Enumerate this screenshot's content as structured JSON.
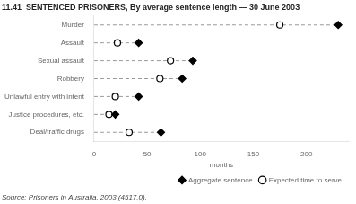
{
  "chart_data": {
    "type": "dot",
    "title": "11.41  SENTENCED PRISONERS, By average sentence length — 30 June 2003",
    "annotations": [
      "Source: Prisoners in Australia, 2003 (4517.0)."
    ],
    "orientation": "horizontal",
    "categories": [
      "Murder",
      "Assault",
      "Sexual assault",
      "Robbery",
      "Unlawful entry with intent",
      "Justice procedures, etc.",
      "Deal/traffic drugs"
    ],
    "series": [
      {
        "name": "Aggregate sentence",
        "color": "black",
        "marker": "diamond",
        "line_style": "dashed",
        "values": [
          230,
          42,
          93,
          83,
          42,
          20,
          63
        ]
      },
      {
        "name": "Expected time to serve",
        "color": "black",
        "marker": "open_circle",
        "values": [
          175,
          22,
          72,
          62,
          20,
          14,
          33
        ]
      }
    ],
    "xlabel": "months",
    "xlim": [
      0,
      240
    ],
    "xticks": [
      0,
      50,
      100,
      150,
      200
    ],
    "grid": false,
    "legend": "lower right"
  }
}
